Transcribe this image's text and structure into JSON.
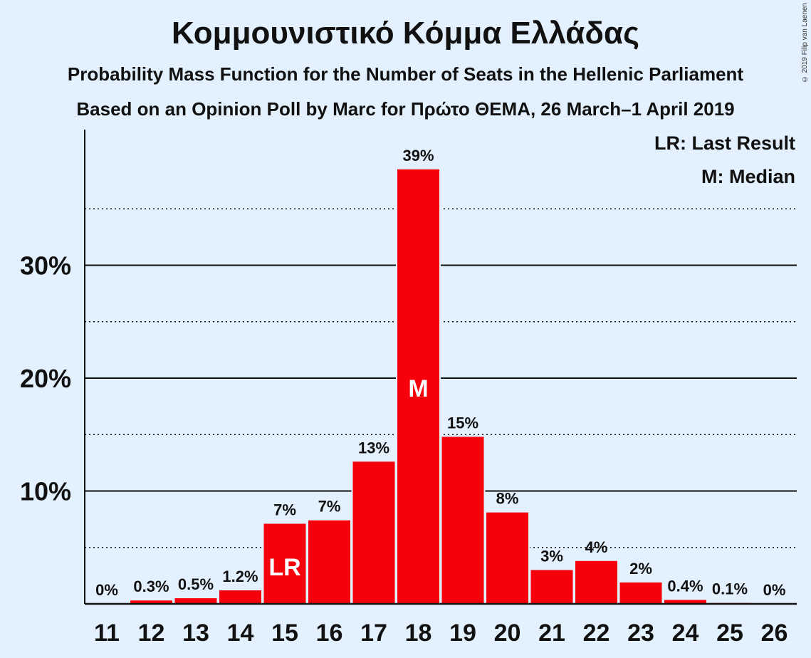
{
  "chart_data": {
    "type": "bar",
    "title": "Κομμουνιστικό Κόμμα Ελλάδας",
    "subtitle_1": "Probability Mass Function for the Number of Seats in the Hellenic Parliament",
    "subtitle_2": "Based on an Opinion Poll by Marc for Πρώτο ΘΕΜΑ, 26 March–1 April 2019",
    "copyright": "© 2019 Filip van Laenen",
    "categories": [
      "11",
      "12",
      "13",
      "14",
      "15",
      "16",
      "17",
      "18",
      "19",
      "20",
      "21",
      "22",
      "23",
      "24",
      "25",
      "26"
    ],
    "values": [
      0,
      0.3,
      0.5,
      1.2,
      7.1,
      7.4,
      12.6,
      38.5,
      14.8,
      8.1,
      3.0,
      3.8,
      1.9,
      0.35,
      0.08,
      0
    ],
    "data_labels": [
      "0%",
      "0.3%",
      "0.5%",
      "1.2%",
      "7%",
      "7%",
      "13%",
      "39%",
      "15%",
      "8%",
      "3%",
      "4%",
      "2%",
      "0.4%",
      "0.1%",
      "0%"
    ],
    "markers": [
      {
        "category": "15",
        "label": "LR"
      },
      {
        "category": "18",
        "label": "M"
      }
    ],
    "legend": [
      "LR: Last Result",
      "M: Median"
    ],
    "legend_placement": "top-right",
    "yticks": [
      10,
      20,
      30
    ],
    "ytick_labels": [
      "10%",
      "20%",
      "30%"
    ],
    "ylim": [
      0,
      42
    ],
    "grid": {
      "major": [
        10,
        20,
        30
      ],
      "minor": [
        5,
        15,
        25,
        35
      ]
    },
    "colors": {
      "bar": "#f5000b",
      "background": "#e3f0fd",
      "text": "#111111"
    }
  }
}
